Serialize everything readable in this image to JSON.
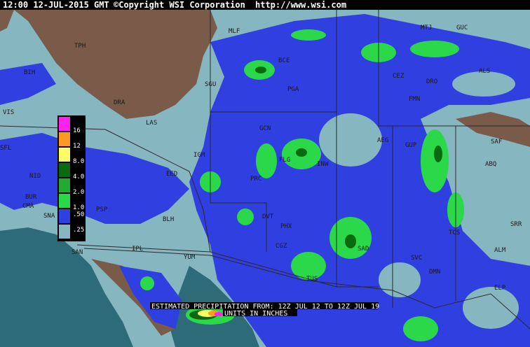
{
  "header": {
    "timestamp": "12:00 12-JUL-2015 GMT",
    "copyright": "©Copyright WSI Corporation",
    "url": "http://www.wsi.com"
  },
  "stations": [
    "TPH",
    "MLF",
    "BIH",
    "DRA",
    "SGU",
    "BCE",
    "PGA",
    "LAS",
    "VIS",
    "SFL",
    "NID",
    "BUR",
    "CMA",
    "SNA",
    "EED",
    "IGM",
    "GCN",
    "FLG",
    "INW",
    "PRC",
    "PSP",
    "BLH",
    "DVT",
    "PHX",
    "CGZ",
    "TUS",
    "SAN",
    "IPL",
    "YUM",
    "SAD",
    "MTJ",
    "GUC",
    "CEZ",
    "DRO",
    "ALS",
    "FMN",
    "AEG",
    "GUP",
    "SAF",
    "ABQ",
    "TCS",
    "SVC",
    "DMN",
    "ALM",
    "ELP",
    "SRR"
  ],
  "legend": {
    "labels": [
      "16",
      "12",
      "8.0",
      "4.0",
      "2.0",
      "1.0",
      ".50",
      ".25"
    ]
  },
  "caption": {
    "line1": "ESTIMATED PRECIPITATION FROM: 12Z JUL 12 TO 12Z JUL 19",
    "line2": "UNITS IN INCHES"
  }
}
